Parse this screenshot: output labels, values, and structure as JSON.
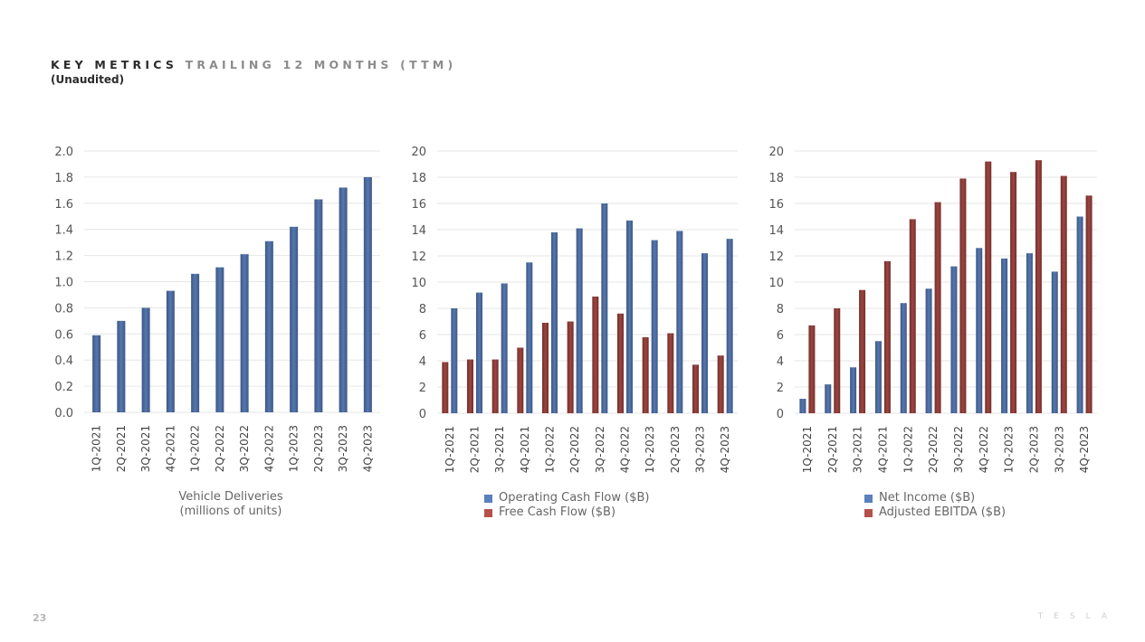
{
  "header": {
    "title_bold": "KEY METRICS",
    "title_light": "TRAILING 12 MONTHS (TTM)",
    "subtitle": "(Unaudited)"
  },
  "footer": {
    "page_number": "23",
    "brand": "TESLA"
  },
  "colors": {
    "blue": "#4a6a9e",
    "red": "#8b3a36",
    "legend_blue": "#5b7fbf",
    "legend_red": "#b5504b",
    "grid": "#e6e6e6"
  },
  "chart_data": [
    {
      "type": "bar",
      "title": "",
      "caption": [
        "Vehicle Deliveries",
        "(millions of units)"
      ],
      "xlabel": "",
      "ylabel": "",
      "categories": [
        "1Q-2021",
        "2Q-2021",
        "3Q-2021",
        "4Q-2021",
        "1Q-2022",
        "2Q-2022",
        "3Q-2022",
        "4Q-2022",
        "1Q-2023",
        "2Q-2023",
        "3Q-2023",
        "4Q-2023"
      ],
      "series": [
        {
          "name": "Vehicle Deliveries (millions of units)",
          "color": "blue",
          "values": [
            0.59,
            0.7,
            0.8,
            0.93,
            1.06,
            1.11,
            1.21,
            1.31,
            1.42,
            1.63,
            1.72,
            1.8
          ]
        }
      ],
      "ylim": [
        0,
        2.0
      ],
      "yticks": [
        "0.0",
        "0.2",
        "0.4",
        "0.6",
        "0.8",
        "1.0",
        "1.2",
        "1.4",
        "1.6",
        "1.8",
        "2.0"
      ],
      "grid": true,
      "legend": "none"
    },
    {
      "type": "bar",
      "title": "",
      "caption": [],
      "xlabel": "",
      "ylabel": "",
      "categories": [
        "1Q-2021",
        "2Q-2021",
        "3Q-2021",
        "4Q-2021",
        "1Q-2022",
        "2Q-2022",
        "3Q-2022",
        "4Q-2022",
        "1Q-2023",
        "2Q-2023",
        "3Q-2023",
        "4Q-2023"
      ],
      "series": [
        {
          "name": "Free Cash Flow ($B)",
          "color": "red",
          "values": [
            3.9,
            4.1,
            4.1,
            5.0,
            6.9,
            7.0,
            8.9,
            7.6,
            5.8,
            6.1,
            3.7,
            4.4
          ]
        },
        {
          "name": "Operating Cash Flow ($B)",
          "color": "blue",
          "values": [
            8.0,
            9.2,
            9.9,
            11.5,
            13.8,
            14.1,
            16.0,
            14.7,
            13.2,
            13.9,
            12.2,
            13.3
          ]
        }
      ],
      "legend_entries": [
        {
          "label": "Operating Cash Flow ($B)",
          "color": "legend_blue"
        },
        {
          "label": "Free Cash Flow ($B)",
          "color": "legend_red"
        }
      ],
      "ylim": [
        0,
        20
      ],
      "yticks": [
        "0",
        "2",
        "4",
        "6",
        "8",
        "10",
        "12",
        "14",
        "16",
        "18",
        "20"
      ],
      "grid": true,
      "legend": "bottom"
    },
    {
      "type": "bar",
      "title": "",
      "caption": [],
      "xlabel": "",
      "ylabel": "",
      "categories": [
        "1Q-2021",
        "2Q-2021",
        "3Q-2021",
        "4Q-2021",
        "1Q-2022",
        "2Q-2022",
        "3Q-2022",
        "4Q-2022",
        "1Q-2023",
        "2Q-2023",
        "3Q-2023",
        "4Q-2023"
      ],
      "series": [
        {
          "name": "Net Income ($B)",
          "color": "blue",
          "values": [
            1.1,
            2.2,
            3.5,
            5.5,
            8.4,
            9.5,
            11.2,
            12.6,
            11.8,
            12.2,
            10.8,
            15.0
          ]
        },
        {
          "name": "Adjusted EBITDA ($B)",
          "color": "red",
          "values": [
            6.7,
            8.0,
            9.4,
            11.6,
            14.8,
            16.1,
            17.9,
            19.2,
            18.4,
            19.3,
            18.1,
            16.6
          ]
        }
      ],
      "legend_entries": [
        {
          "label": "Net Income ($B)",
          "color": "legend_blue"
        },
        {
          "label": "Adjusted EBITDA ($B)",
          "color": "legend_red"
        }
      ],
      "ylim": [
        0,
        20
      ],
      "yticks": [
        "0",
        "2",
        "4",
        "6",
        "8",
        "10",
        "12",
        "14",
        "16",
        "18",
        "20"
      ],
      "grid": true,
      "legend": "bottom"
    }
  ]
}
